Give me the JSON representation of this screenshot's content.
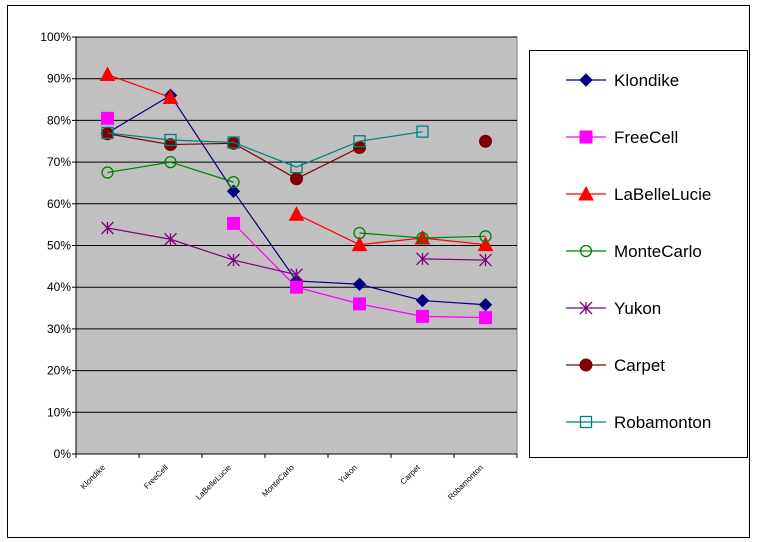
{
  "chart_data": {
    "type": "line",
    "categories": [
      "Klondike",
      "FreeCell",
      "LaBelleLucie",
      "MonteCarlo",
      "Yukon",
      "Carpet",
      "Robamonton"
    ],
    "ylim": [
      0,
      100
    ],
    "y_ticks": [
      "0%",
      "10%",
      "20%",
      "30%",
      "40%",
      "50%",
      "60%",
      "70%",
      "80%",
      "90%",
      "100%"
    ],
    "grid": true,
    "plot_background": "#c0c0c0",
    "legend_position": "right",
    "series": [
      {
        "name": "Klondike",
        "color": "#000080",
        "marker": "diamond",
        "values": [
          77,
          86,
          63,
          41.5,
          40.7,
          36.8,
          35.8
        ]
      },
      {
        "name": "FreeCell",
        "color": "#ff00ff",
        "marker": "square",
        "values": [
          80.5,
          null,
          55.3,
          40,
          36,
          33,
          32.7
        ]
      },
      {
        "name": "LaBelleLucie",
        "color": "#ff0000",
        "marker": "triangle",
        "values": [
          91,
          85.5,
          null,
          57.5,
          50.2,
          51.8,
          50.2
        ]
      },
      {
        "name": "MonteCarlo",
        "color": "#008000",
        "marker": "open-circle",
        "values": [
          67.5,
          70,
          65.2,
          null,
          53,
          51.8,
          52.2
        ]
      },
      {
        "name": "Yukon",
        "color": "#800080",
        "marker": "star",
        "values": [
          54.2,
          51.5,
          46.5,
          43,
          null,
          46.8,
          46.5
        ]
      },
      {
        "name": "Carpet",
        "color": "#800000",
        "marker": "filled-circle",
        "values": [
          76.8,
          74.2,
          74.5,
          66,
          73.5,
          null,
          75
        ]
      },
      {
        "name": "Robamonton",
        "color": "#008080",
        "marker": "open-square",
        "values": [
          77,
          75.3,
          74.7,
          68.8,
          75,
          77.3,
          null
        ]
      }
    ]
  }
}
